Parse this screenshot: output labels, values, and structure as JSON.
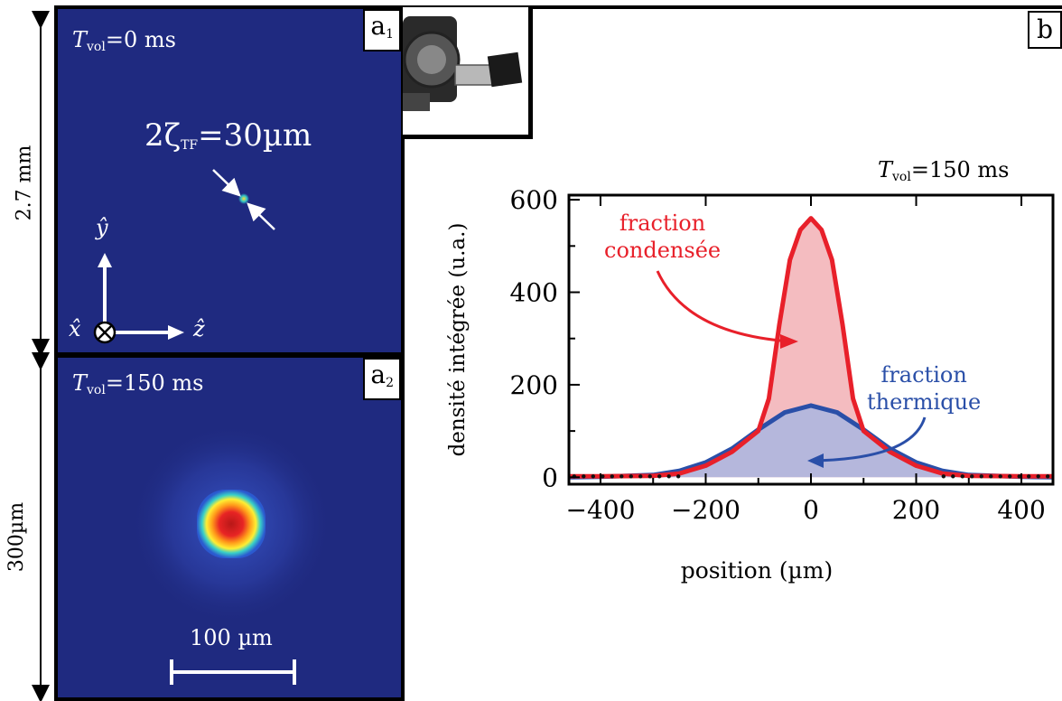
{
  "left_dims": {
    "top_label": "2.7 mm",
    "bottom_label": "300µm"
  },
  "panel_a1": {
    "label": "a",
    "label_sub": "1",
    "tvol_var": "T",
    "tvol_sub": "vol",
    "tvol_value": "=0 ms",
    "size_text_prefix": "2ζ",
    "size_text_sub": "TF",
    "size_text_value": "=30µm",
    "axis_y": "ŷ",
    "axis_x": "x̂",
    "axis_z": "ẑ"
  },
  "panel_a2": {
    "label": "a",
    "label_sub": "2",
    "tvol_var": "T",
    "tvol_sub": "vol",
    "tvol_value": "=150 ms",
    "scale_label": "100 µm"
  },
  "panel_b": {
    "label": "b",
    "tvol_var": "T",
    "tvol_sub": "vol",
    "tvol_value": "=150 ms",
    "annotation_condensed_1": "fraction",
    "annotation_condensed_2": "condensée",
    "annotation_thermal_1": "fraction",
    "annotation_thermal_2": "thermique"
  },
  "colors": {
    "panel_bg": "#1f2a80",
    "condensed": "#e8202a",
    "condensed_fill": "#f4bcc0",
    "thermal": "#2a4fa8",
    "thermal_fill": "#b5b7dc"
  },
  "chart_data": {
    "type": "line",
    "title": "",
    "xlabel": "position (µm)",
    "ylabel": "densité intégrée (u.a.)",
    "xlim": [
      -460,
      460
    ],
    "ylim": [
      -15,
      610
    ],
    "xticks": [
      -400,
      -200,
      0,
      200,
      400
    ],
    "xtick_labels": [
      "−400",
      "−200",
      "0",
      "200",
      "400"
    ],
    "yticks": [
      0,
      200,
      400,
      600
    ],
    "ytick_labels": [
      "0",
      "200",
      "400",
      "600"
    ],
    "grid": false,
    "series": [
      {
        "name": "fraction condensée",
        "x": [
          -460,
          -400,
          -300,
          -250,
          -200,
          -150,
          -100,
          -80,
          -60,
          -40,
          -20,
          0,
          20,
          40,
          60,
          80,
          100,
          150,
          200,
          250,
          300,
          400,
          460
        ],
        "y": [
          2,
          2,
          3,
          8,
          25,
          55,
          100,
          170,
          330,
          470,
          535,
          560,
          535,
          470,
          330,
          170,
          100,
          55,
          25,
          8,
          3,
          2,
          2
        ]
      },
      {
        "name": "fraction thermique",
        "x": [
          -460,
          -400,
          -300,
          -250,
          -200,
          -150,
          -100,
          -50,
          0,
          50,
          100,
          150,
          200,
          250,
          300,
          400,
          460
        ],
        "y": [
          0,
          1,
          5,
          14,
          32,
          62,
          103,
          140,
          155,
          140,
          103,
          62,
          32,
          14,
          5,
          1,
          0
        ]
      }
    ]
  }
}
